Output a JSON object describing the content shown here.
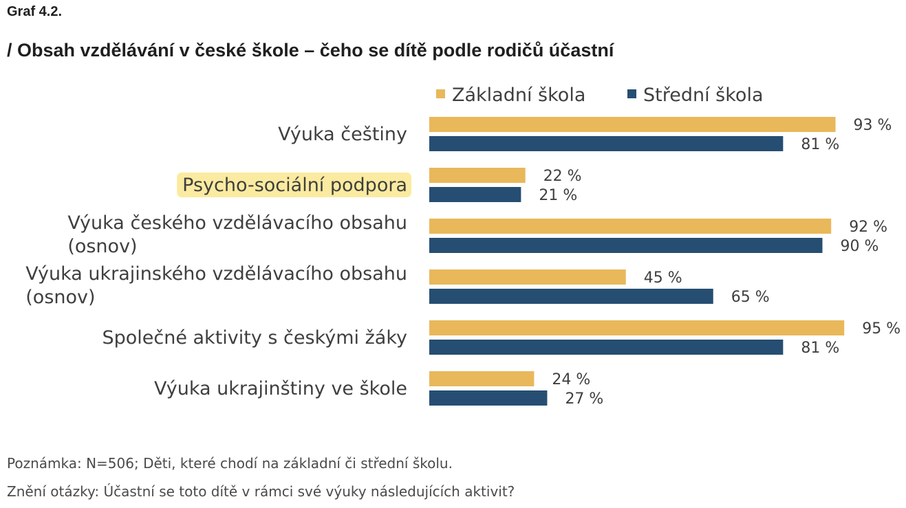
{
  "header": {
    "graf_label": "Graf 4.2.",
    "title": "/ Obsah vzdělávání v české škole – čeho se dítě podle rodičů účastní"
  },
  "chart_data": {
    "type": "bar",
    "orientation": "horizontal",
    "categories": [
      [
        "Výuka češtiny"
      ],
      [
        "Psycho-sociální podpora"
      ],
      [
        "Výuka českého vzdělávacího obsahu",
        "(osnov)"
      ],
      [
        "Výuka ukrajinského vzdělávacího obsahu",
        "(osnov)"
      ],
      [
        "Společné aktivity s českými žáky"
      ],
      [
        "Výuka ukrajinštiny ve škole"
      ]
    ],
    "highlighted_category_index": 1,
    "highlight_color": "#fbeba0",
    "series": [
      {
        "name": "Základní škola",
        "color": "#e8b85a",
        "values": [
          93,
          22,
          92,
          45,
          95,
          24
        ]
      },
      {
        "name": "Střední škola",
        "color": "#264e72",
        "values": [
          81,
          21,
          90,
          65,
          81,
          27
        ]
      }
    ],
    "value_suffix": " %",
    "xlim": [
      0,
      100
    ],
    "grid": false,
    "legend_position": "top"
  },
  "notes": {
    "line1": "Poznámka: N=506; Děti, které chodí na základní či střední školu.",
    "line2": "Znění otázky: Účastní se toto dítě v rámci své výuky následujících aktivit?"
  }
}
